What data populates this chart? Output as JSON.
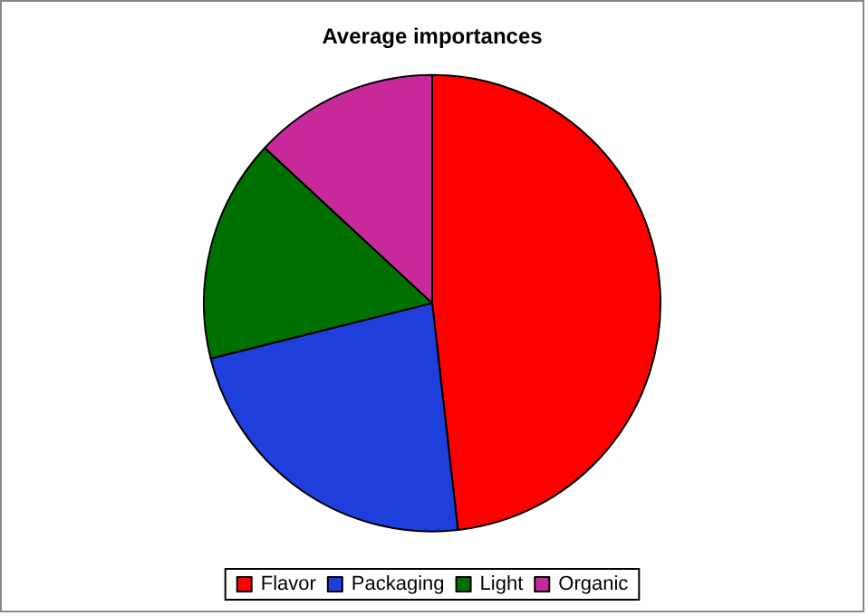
{
  "chart_data": {
    "type": "pie",
    "title": "Average importances",
    "categories": [
      "Flavor",
      "Packaging",
      "Light",
      "Organic"
    ],
    "values": [
      48.2,
      22.9,
      15.8,
      13.1
    ],
    "colors": [
      "#ff0000",
      "#1f3fdc",
      "#007000",
      "#c82a9c"
    ],
    "legend": "bottom"
  }
}
